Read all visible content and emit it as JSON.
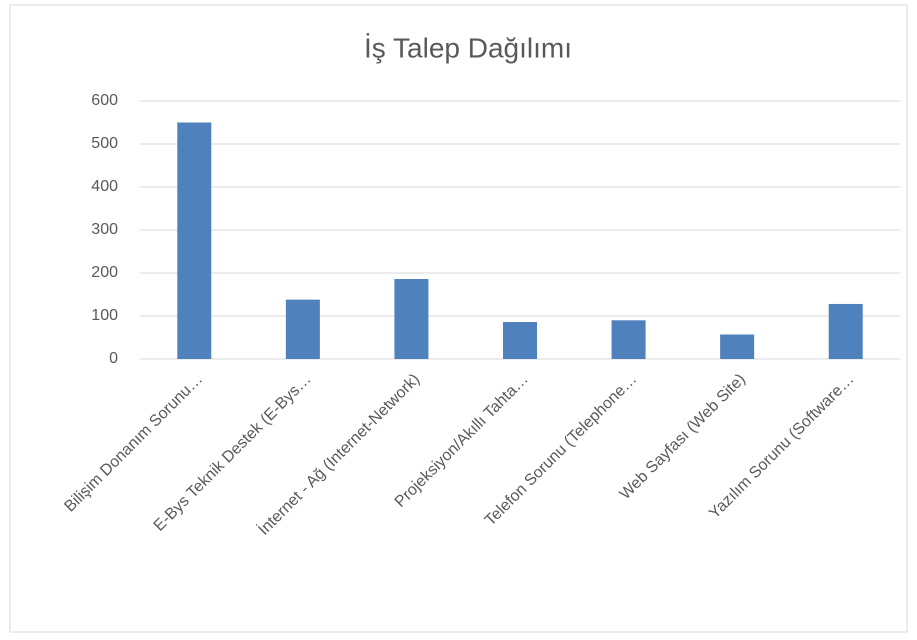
{
  "chart_data": {
    "type": "bar",
    "title": "İş Talep Dağılımı",
    "categories": [
      "Bilişim Donanım Sorunu…",
      "E-Bys Teknik Destek (E-Bys…",
      "İnternet - Ağ (Internet-Network)",
      "Projeksiyon/Akıllı Tahta…",
      "Telefon Sorunu (Telephone…",
      "Web Sayfası (Web Site)",
      "Yazılım Sorunu (Software…"
    ],
    "values": [
      550,
      138,
      186,
      86,
      90,
      57,
      128
    ],
    "color": "#4f81bd",
    "ylim": [
      0,
      600
    ],
    "yticks": [
      0,
      100,
      200,
      300,
      400,
      500,
      600
    ],
    "grid": true
  }
}
